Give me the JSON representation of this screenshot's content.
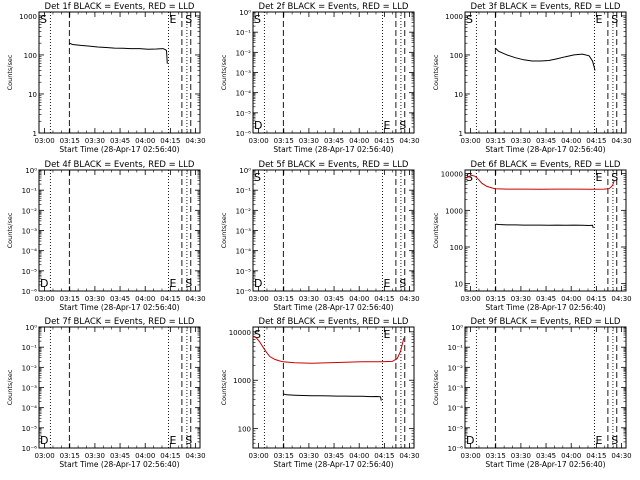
{
  "chart_data": {
    "type": "line",
    "xlabel": "Start Time (28-Apr-17 02:56:40)",
    "ylabel": "Counts/sec",
    "x_tick_labels": [
      "03:00",
      "03:15",
      "03:30",
      "03:45",
      "04:00",
      "04:15",
      "04:30"
    ],
    "x_tick_minutes": [
      3.33,
      18.33,
      33.33,
      48.33,
      63.33,
      78.33,
      93.33
    ],
    "xlim_minutes": [
      0,
      96
    ],
    "y_scale": "log",
    "marker_lines": [
      {
        "minute": 6.8,
        "style": "dotted"
      },
      {
        "minute": 18.1,
        "style": "dashed"
      },
      {
        "minute": 77.2,
        "style": "dotted"
      },
      {
        "minute": 85.2,
        "style": "dashed"
      },
      {
        "minute": 88.2,
        "style": "dotted"
      },
      {
        "minute": 90.5,
        "style": "dashed"
      }
    ],
    "panels": [
      {
        "title": "Det 1f BLACK = Events, RED = LLD",
        "yticks": [
          "1",
          "10",
          "100",
          "1000"
        ],
        "ylim_exp": [
          0,
          3.1
        ],
        "letters": [
          {
            "text": "S",
            "minute": 0.6,
            "pos": "top"
          },
          {
            "text": "E",
            "minute": 77.8,
            "pos": "top"
          },
          {
            "text": "S",
            "minute": 87.2,
            "pos": "top"
          }
        ],
        "series": [
          {
            "color": "#000000",
            "points": [
              [
                18.2,
                200
              ],
              [
                20,
                185
              ],
              [
                25,
                175
              ],
              [
                30,
                168
              ],
              [
                35,
                160
              ],
              [
                40,
                155
              ],
              [
                45,
                150
              ],
              [
                50,
                148
              ],
              [
                55,
                145
              ],
              [
                60,
                145
              ],
              [
                65,
                140
              ],
              [
                70,
                142
              ],
              [
                74,
                145
              ],
              [
                75.5,
                135
              ],
              [
                76,
                130
              ],
              [
                76.5,
                60
              ]
            ]
          }
        ]
      },
      {
        "title": "Det 2f BLACK = Events, RED = LLD",
        "yticks": [
          "10⁻⁶",
          "10⁻⁵",
          "10⁻⁴",
          "10⁻³",
          "10⁻²",
          "10⁻¹",
          "10⁰"
        ],
        "ylim_exp": [
          -6,
          0
        ],
        "letters": [
          {
            "text": "S",
            "minute": 0.6,
            "pos": "top"
          },
          {
            "text": "D",
            "minute": 0.6,
            "pos": "bottom"
          },
          {
            "text": "E",
            "minute": 77.8,
            "pos": "bottom"
          },
          {
            "text": "S",
            "minute": 87.2,
            "pos": "bottom"
          }
        ],
        "series": []
      },
      {
        "title": "Det 3f BLACK = Events, RED = LLD",
        "yticks": [
          "1",
          "10",
          "100",
          "1000"
        ],
        "ylim_exp": [
          0,
          3.1
        ],
        "letters": [
          {
            "text": "S",
            "minute": 0.6,
            "pos": "top"
          },
          {
            "text": "E",
            "minute": 77.8,
            "pos": "top"
          },
          {
            "text": "S",
            "minute": 87.2,
            "pos": "top"
          }
        ],
        "series": [
          {
            "color": "#000000",
            "points": [
              [
                18.2,
                150
              ],
              [
                20,
                125
              ],
              [
                25,
                100
              ],
              [
                30,
                85
              ],
              [
                35,
                75
              ],
              [
                40,
                70
              ],
              [
                45,
                70
              ],
              [
                50,
                72
              ],
              [
                55,
                80
              ],
              [
                60,
                90
              ],
              [
                65,
                100
              ],
              [
                70,
                105
              ],
              [
                74,
                95
              ],
              [
                76,
                70
              ],
              [
                77,
                50
              ],
              [
                77.5,
                40
              ]
            ]
          }
        ]
      },
      {
        "title": "Det 4f BLACK = Events, RED = LLD",
        "yticks": [
          "10⁻⁶",
          "10⁻⁵",
          "10⁻⁴",
          "10⁻³",
          "10⁻²",
          "10⁻¹",
          "10⁰"
        ],
        "ylim_exp": [
          -6,
          0
        ],
        "letters": [
          {
            "text": "D",
            "minute": 0.6,
            "pos": "bottom"
          },
          {
            "text": "E",
            "minute": 77.8,
            "pos": "bottom"
          },
          {
            "text": "S",
            "minute": 87.2,
            "pos": "bottom"
          }
        ],
        "series": []
      },
      {
        "title": "Det 5f BLACK = Events, RED = LLD",
        "yticks": [
          "10⁻⁶",
          "10⁻⁵",
          "10⁻⁴",
          "10⁻³",
          "10⁻²",
          "10⁻¹",
          "10⁰"
        ],
        "ylim_exp": [
          -6,
          0
        ],
        "letters": [
          {
            "text": "S",
            "minute": 0.6,
            "pos": "top"
          },
          {
            "text": "D",
            "minute": 0.6,
            "pos": "bottom"
          },
          {
            "text": "E",
            "minute": 77.8,
            "pos": "bottom"
          },
          {
            "text": "S",
            "minute": 87.2,
            "pos": "bottom"
          }
        ],
        "series": []
      },
      {
        "title": "Det 6f BLACK = Events, RED = LLD",
        "yticks": [
          "10",
          "100",
          "1000",
          "10000"
        ],
        "ylim_exp": [
          0.8,
          4.1
        ],
        "letters": [
          {
            "text": "S",
            "minute": 0.6,
            "pos": "top"
          },
          {
            "text": "E",
            "minute": 77.8,
            "pos": "top"
          },
          {
            "text": "S",
            "minute": 87.2,
            "pos": "top"
          }
        ],
        "series": [
          {
            "color": "#cc0000",
            "points": [
              [
                0.5,
                7500
              ],
              [
                2,
                8200
              ],
              [
                4,
                9000
              ],
              [
                6,
                8500
              ],
              [
                8,
                7000
              ],
              [
                10,
                5500
              ],
              [
                13,
                4500
              ],
              [
                16,
                4100
              ],
              [
                18,
                3900
              ],
              [
                25,
                3800
              ],
              [
                35,
                3800
              ],
              [
                45,
                3750
              ],
              [
                55,
                3800
              ],
              [
                65,
                3800
              ],
              [
                75,
                3750
              ],
              [
                83,
                3800
              ],
              [
                86,
                3900
              ],
              [
                88,
                4800
              ],
              [
                89,
                6500
              ]
            ]
          },
          {
            "color": "#000000",
            "points": [
              [
                18.2,
                420
              ],
              [
                20,
                410
              ],
              [
                25,
                400
              ],
              [
                30,
                400
              ],
              [
                35,
                395
              ],
              [
                40,
                395
              ],
              [
                45,
                395
              ],
              [
                50,
                390
              ],
              [
                55,
                395
              ],
              [
                60,
                390
              ],
              [
                65,
                395
              ],
              [
                70,
                390
              ],
              [
                74,
                385
              ],
              [
                76,
                390
              ],
              [
                76.5,
                330
              ]
            ]
          }
        ]
      },
      {
        "title": "Det 7f BLACK = Events, RED = LLD",
        "yticks": [
          "10⁻⁶",
          "10⁻⁵",
          "10⁻⁴",
          "10⁻³",
          "10⁻²",
          "10⁻¹",
          "10⁰"
        ],
        "ylim_exp": [
          -6,
          0
        ],
        "letters": [
          {
            "text": "D",
            "minute": 0.6,
            "pos": "bottom"
          },
          {
            "text": "E",
            "minute": 77.8,
            "pos": "bottom"
          },
          {
            "text": "S",
            "minute": 87.2,
            "pos": "bottom"
          }
        ],
        "series": []
      },
      {
        "title": "Det 8f BLACK = Events, RED = LLD",
        "yticks": [
          "100",
          "1000",
          "10000"
        ],
        "ylim_exp": [
          1.6,
          4.1
        ],
        "letters": [
          {
            "text": "S",
            "minute": 0.6,
            "pos": "top"
          },
          {
            "text": "E",
            "minute": 77.8,
            "pos": "top"
          }
        ],
        "series": [
          {
            "color": "#cc0000",
            "points": [
              [
                0.5,
                8000
              ],
              [
                2,
                7500
              ],
              [
                4,
                6200
              ],
              [
                6,
                4800
              ],
              [
                8,
                3800
              ],
              [
                10,
                3100
              ],
              [
                13,
                2700
              ],
              [
                16,
                2500
              ],
              [
                18,
                2400
              ],
              [
                25,
                2300
              ],
              [
                35,
                2250
              ],
              [
                45,
                2300
              ],
              [
                55,
                2350
              ],
              [
                65,
                2400
              ],
              [
                75,
                2400
              ],
              [
                83,
                2450
              ],
              [
                86,
                2800
              ],
              [
                88,
                4000
              ],
              [
                90,
                7500
              ]
            ]
          },
          {
            "color": "#000000",
            "points": [
              [
                18.2,
                520
              ],
              [
                20,
                500
              ],
              [
                25,
                490
              ],
              [
                30,
                485
              ],
              [
                35,
                480
              ],
              [
                40,
                478
              ],
              [
                45,
                475
              ],
              [
                50,
                470
              ],
              [
                55,
                470
              ],
              [
                60,
                465
              ],
              [
                65,
                465
              ],
              [
                70,
                460
              ],
              [
                74,
                462
              ],
              [
                76,
                455
              ],
              [
                76.5,
                380
              ]
            ]
          }
        ]
      },
      {
        "title": "Det 9f BLACK = Events, RED = LLD",
        "yticks": [
          "10⁻⁶",
          "10⁻⁵",
          "10⁻⁴",
          "10⁻³",
          "10⁻²",
          "10⁻¹",
          "10⁰"
        ],
        "ylim_exp": [
          -6,
          0
        ],
        "letters": [
          {
            "text": "D",
            "minute": 0.6,
            "pos": "bottom"
          },
          {
            "text": "E",
            "minute": 77.8,
            "pos": "bottom"
          },
          {
            "text": "S",
            "minute": 87.2,
            "pos": "bottom"
          }
        ],
        "series": []
      }
    ]
  }
}
